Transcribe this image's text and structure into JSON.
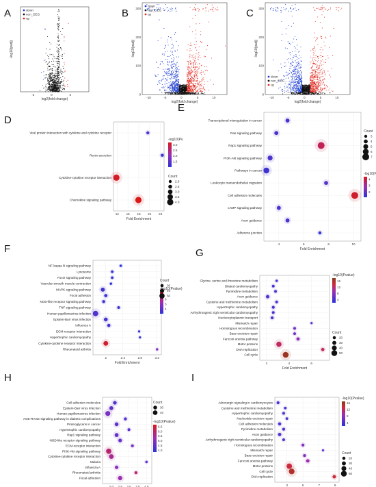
{
  "figure": {
    "panels": [
      "A",
      "B",
      "C",
      "D",
      "E",
      "F",
      "G",
      "H",
      "I"
    ]
  },
  "chart_data": [
    {
      "panel": "A",
      "type": "scatter",
      "subtype": "volcano",
      "xlabel": "log2(fold change)",
      "ylabel": "-log10(padj)",
      "x_ticks": [
        "-3",
        "0",
        "3"
      ],
      "xlim": [
        -5,
        6
      ],
      "ylim": [
        0,
        60
      ],
      "legend": [
        "down",
        "non_DEG",
        "up"
      ],
      "legend_position": "top-left",
      "colors": {
        "down": "#1f3fd1",
        "non_DEG": "#111111",
        "up": "#e0281e"
      }
    },
    {
      "panel": "B",
      "type": "scatter",
      "subtype": "volcano",
      "xlabel": "log2(fold change)",
      "ylabel": "-log10(padj)",
      "x_ticks": [
        "-10",
        "-5",
        "0",
        "5",
        "10"
      ],
      "y_ticks": [
        "0",
        "100",
        "200",
        "300"
      ],
      "xlim": [
        -12,
        14
      ],
      "ylim": [
        0,
        320
      ],
      "legend": [
        "down",
        "non_DEG",
        "up"
      ],
      "legend_position": "top-left",
      "colors": {
        "down": "#1f3fd1",
        "non_DEG": "#111111",
        "up": "#e0281e"
      }
    },
    {
      "panel": "C",
      "type": "scatter",
      "subtype": "volcano",
      "xlabel": "log2(fold change)",
      "ylabel": "-log10(padj)",
      "x_ticks": [
        "-10",
        "-5",
        "0",
        "5",
        "10"
      ],
      "y_ticks": [
        "0",
        "100",
        "200",
        "300"
      ],
      "xlim": [
        -12,
        14
      ],
      "ylim": [
        0,
        320
      ],
      "legend": [
        "down",
        "non_DEG",
        "up"
      ],
      "legend_position": "bottom-left",
      "colors": {
        "down": "#1f3fd1",
        "non_DEG": "#111111",
        "up": "#e0281e"
      }
    },
    {
      "panel": "D",
      "type": "scatter",
      "subtype": "bubble",
      "xlabel": "Fold Enrichment",
      "xlim": [
        11,
        25
      ],
      "x_ticks": [
        12,
        15,
        18,
        21,
        24
      ],
      "categories": [
        "Viral protein interaction with cytokine and cytokine receptor",
        "Renin secretion",
        "Cytokine-cytokine receptor interaction",
        "Chemokine signaling pathway"
      ],
      "x": [
        20.5,
        24.5,
        11.8,
        17.9
      ],
      "count": [
        2,
        2,
        4,
        4
      ],
      "neglog10p": [
        1.3,
        1.2,
        3.1,
        3.2
      ],
      "color_title": "-log10(Pv.",
      "color_ticks": [
        "3.0",
        "2.5",
        "2.0",
        "1.5"
      ],
      "color_range": [
        1.0,
        3.2
      ],
      "size_title": "Count",
      "size_ticks": [
        "2.0",
        "2.5",
        "3.0",
        "3.5",
        "4.0"
      ],
      "size_range": [
        2,
        4
      ]
    },
    {
      "panel": "E",
      "type": "scatter",
      "subtype": "bubble",
      "xlabel": "Fold Enrichment",
      "xlim": [
        2.8,
        10.6
      ],
      "x_ticks": [
        4,
        6,
        8,
        10
      ],
      "categories": [
        "Transcriptional misregulation in cancer",
        "Ras signaling pathway",
        "Rap1 signaling pathway",
        "PI3K-Akt signaling pathway",
        "Pathways in cancer",
        "Leukocyte transendothelial migration",
        "Cell adhesion molecules",
        "cAMP signaling pathway",
        "Axon guidance",
        "Adherens junction"
      ],
      "x": [
        4.7,
        3.8,
        7.4,
        3.3,
        3.0,
        7.8,
        10.1,
        4.0,
        4.7,
        7.3
      ],
      "count": [
        4,
        4,
        7,
        5,
        6,
        4,
        7,
        4,
        4,
        3
      ],
      "neglog10p": [
        1.6,
        1.6,
        3.8,
        1.7,
        1.5,
        1.8,
        4.2,
        1.6,
        1.7,
        1.4
      ],
      "color_title": "-log10(Pvalue)",
      "color_ticks": [
        "4",
        "3",
        "2"
      ],
      "color_range": [
        1.2,
        4.4
      ],
      "size_title": "Count",
      "size_ticks": [
        "3",
        "4",
        "5",
        "6",
        "7"
      ],
      "size_range": [
        3,
        7
      ]
    },
    {
      "panel": "F",
      "type": "scatter",
      "subtype": "bubble",
      "xlabel": "Fold Enrichment",
      "xlim": [
        1.7,
        3.3
      ],
      "x_ticks": [
        2.0,
        2.4,
        2.8,
        3.2
      ],
      "categories": [
        "NF-kappa B signaling pathway",
        "Lysosome",
        "FoxO signaling pathway",
        "Vascular smooth muscle contraction",
        "MAPK signaling pathway",
        "Focal adhesion",
        "NOD-like receptor signaling pathway",
        "TNF signaling pathway",
        "Human papillomavirus infection",
        "Epstein-Barr virus infection",
        "Influenza A",
        "ECM-receptor interaction",
        "Hypertrophic cardiomyopathy",
        "Cytokine-cytokine receptor interaction",
        "Rheumatoid arthritis"
      ],
      "x": [
        2.35,
        2.15,
        2.15,
        2.12,
        1.93,
        2.0,
        1.95,
        2.3,
        1.76,
        2.0,
        2.07,
        2.78,
        2.8,
        2.0,
        3.2
      ],
      "count": [
        22,
        24,
        24,
        22,
        38,
        30,
        28,
        25,
        52,
        36,
        30,
        18,
        20,
        45,
        22
      ],
      "neglog10p": [
        3.0,
        3.2,
        3.2,
        3.1,
        3.5,
        3.3,
        3.4,
        3.3,
        3.8,
        3.5,
        3.5,
        3.3,
        3.3,
        7.2,
        4.8
      ],
      "color_title": "-log10(Pvalue)",
      "color_ticks": [
        "6",
        "5",
        "4"
      ],
      "color_range": [
        3.0,
        7.5
      ],
      "size_title": "Count",
      "size_ticks": [
        "30",
        "40",
        "50"
      ],
      "size_range": [
        20,
        55
      ]
    },
    {
      "panel": "G",
      "type": "scatter",
      "subtype": "bubble",
      "xlabel": "Fold Enrichment",
      "xlim": [
        1.4,
        7.6
      ],
      "x_ticks": [
        2,
        4,
        6
      ],
      "categories": [
        "Glycine, serine and threonine metabolism",
        "Dilated cardiomyopathy",
        "Pyrimidine metabolism",
        "Axon guidance",
        "Cysteine and methionine metabolism",
        "Hypertrophic cardiomyopathy",
        "Arrhythmogenic right ventricular cardiomyopathy",
        "Nucleocytoplasmic transport",
        "Mismatch repair",
        "Homologous recombination",
        "Base excision repair",
        "Fanconi anemia pathway",
        "Motor proteins",
        "DNA replication",
        "Cell cycle"
      ],
      "x": [
        2.9,
        2.6,
        2.8,
        2.1,
        2.9,
        2.6,
        2.6,
        2.5,
        6.0,
        4.5,
        4.5,
        4.8,
        3.1,
        7.0,
        3.7
      ],
      "count": [
        12,
        16,
        16,
        24,
        16,
        18,
        16,
        18,
        10,
        16,
        16,
        22,
        44,
        22,
        50
      ],
      "neglog10p": [
        3.5,
        4.0,
        4.0,
        4.5,
        4.2,
        4.5,
        4.0,
        4.2,
        5.0,
        6.5,
        6.5,
        8.5,
        12.5,
        12.5,
        17.0
      ],
      "color_title": "-log10(Pvalue)",
      "color_ticks": [
        "16",
        "12",
        "8",
        "4"
      ],
      "color_range": [
        2,
        18
      ],
      "size_title": "Count",
      "size_ticks": [
        "20",
        "30",
        "40",
        "50"
      ],
      "size_range": [
        10,
        55
      ]
    },
    {
      "panel": "H",
      "type": "scatter",
      "subtype": "bubble",
      "xlabel": "Fold Enrichment",
      "xlim": [
        1.5,
        4.3
      ],
      "x_ticks": [
        "2.0",
        "2.5",
        "3.0",
        "3.5",
        "4.0"
      ],
      "categories": [
        "Cell adhesion molecules",
        "Epstein-Barr virus infection",
        "Human papillomavirus infection",
        "AGE-RAGE signaling pathway in diabetic complications",
        "Proteoglycans in cancer",
        "Hypertrophic cardiomyopathy",
        "Rap1 signaling pathway",
        "NOD-like receptor signaling pathway",
        "ECM-receptor interaction",
        "PI3K-Akt signaling pathway",
        "Cytokine-cytokine receptor interaction",
        "Malaria",
        "Influenza A",
        "Rheumatoid arthritis",
        "Focal adhesion"
      ],
      "x": [
        2.2,
        2.0,
        1.8,
        2.8,
        2.3,
        3.0,
        2.3,
        2.5,
        3.2,
        1.85,
        2.0,
        4.0,
        2.3,
        3.4,
        2.5
      ],
      "count": [
        28,
        32,
        44,
        20,
        30,
        18,
        32,
        28,
        18,
        48,
        40,
        14,
        26,
        20,
        36
      ],
      "neglog10p": [
        4.3,
        4.5,
        4.8,
        4.4,
        4.5,
        4.4,
        4.6,
        4.6,
        4.7,
        5.9,
        5.6,
        4.5,
        5.0,
        5.9,
        5.3
      ],
      "color_title": "-log10(Pvalue)",
      "color_ticks": [
        "6.5",
        "6.0",
        "5.5",
        "5.0",
        "4.5",
        "4.0"
      ],
      "color_range": [
        3.8,
        6.7
      ],
      "size_title": "Count",
      "size_ticks": [
        "30",
        "40"
      ],
      "size_range": [
        14,
        50
      ]
    },
    {
      "panel": "I",
      "type": "scatter",
      "subtype": "bubble",
      "xlabel": "Fold Enrichment",
      "xlim": [
        1.5,
        9.5
      ],
      "x_ticks": [
        3,
        5,
        7,
        9
      ],
      "categories": [
        "Adrenergic signaling in cardiomyocytes",
        "Cysteine and methionine metabolism",
        "Hypertrophic cardiomyopathy",
        "Nucleotide excision repair",
        "Cell adhesion molecules",
        "Pyrimidine metabolism",
        "Axon guidance",
        "Arrhythmogenic right ventricular cardiomyopathy",
        "Homologous recombination",
        "Mismatch repair",
        "Base excision repair",
        "Fanconi anemia pathway",
        "Motor proteins",
        "Cell cycle",
        "DNA replication"
      ],
      "x": [
        1.9,
        2.8,
        2.6,
        3.0,
        2.1,
        2.6,
        2.1,
        2.6,
        5.0,
        7.5,
        5.2,
        5.6,
        3.3,
        3.6,
        8.9
      ],
      "count": [
        18,
        14,
        16,
        14,
        20,
        18,
        22,
        16,
        18,
        10,
        18,
        24,
        46,
        48,
        24
      ],
      "neglog10p": [
        3.5,
        3.8,
        4.0,
        3.8,
        4.2,
        4.5,
        4.5,
        4.2,
        7.5,
        5.0,
        7.0,
        9.0,
        13.0,
        15.0,
        13.5
      ],
      "color_title": "-log10(Pvalue)",
      "color_ticks": [
        "16",
        "12",
        "8",
        "4"
      ],
      "color_range": [
        2,
        17
      ],
      "size_title": "Count",
      "size_ticks": [
        "20",
        "30",
        "40",
        "50"
      ],
      "size_range": [
        10,
        55
      ]
    }
  ]
}
